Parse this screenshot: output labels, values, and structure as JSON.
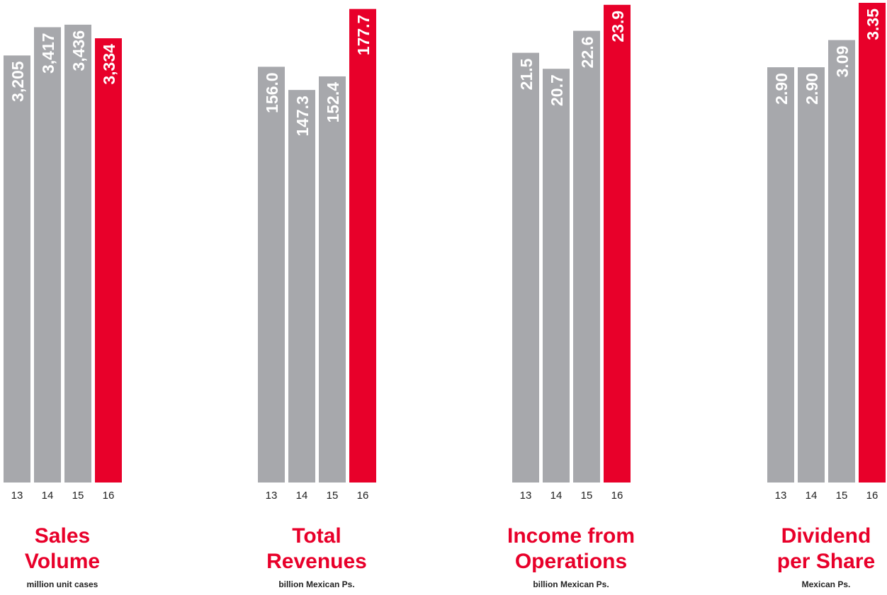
{
  "colors": {
    "past": "#a7a8ac",
    "current": "#e8002a",
    "label": "#ffffff",
    "tick": "#222222",
    "title": "#e8002a"
  },
  "chart_data": [
    {
      "type": "bar",
      "categories": [
        "13",
        "14",
        "15",
        "16"
      ],
      "values": [
        3205,
        3417,
        3436,
        3334
      ],
      "value_labels": [
        "3,205",
        "3,417",
        "3,436",
        "3,334"
      ],
      "highlight_index": 3,
      "title_lines": [
        "Sales",
        "Volume"
      ],
      "unit": "million unit cases",
      "ylim": [
        0,
        3600
      ]
    },
    {
      "type": "bar",
      "categories": [
        "13",
        "14",
        "15",
        "16"
      ],
      "values": [
        156.0,
        147.3,
        152.4,
        177.7
      ],
      "value_labels": [
        "156.0",
        "147.3",
        "152.4",
        "177.7"
      ],
      "highlight_index": 3,
      "title_lines": [
        "Total",
        "Revenues"
      ],
      "unit": "billion Mexican Ps.",
      "ylim": [
        0,
        180
      ]
    },
    {
      "type": "bar",
      "categories": [
        "13",
        "14",
        "15",
        "16"
      ],
      "values": [
        21.5,
        20.7,
        22.6,
        23.9
      ],
      "value_labels": [
        "21.5",
        "20.7",
        "22.6",
        "23.9"
      ],
      "highlight_index": 3,
      "title_lines": [
        "Income from",
        "Operations"
      ],
      "unit": "billion Mexican Ps.",
      "ylim": [
        0,
        24
      ]
    },
    {
      "type": "bar",
      "categories": [
        "13",
        "14",
        "15",
        "16"
      ],
      "values": [
        2.9,
        2.9,
        3.09,
        3.35
      ],
      "value_labels": [
        "2.90",
        "2.90",
        "3.09",
        "3.35"
      ],
      "highlight_index": 3,
      "title_lines": [
        "Dividend",
        "per Share"
      ],
      "unit": "Mexican Ps.",
      "ylim": [
        0,
        3.35
      ]
    }
  ]
}
